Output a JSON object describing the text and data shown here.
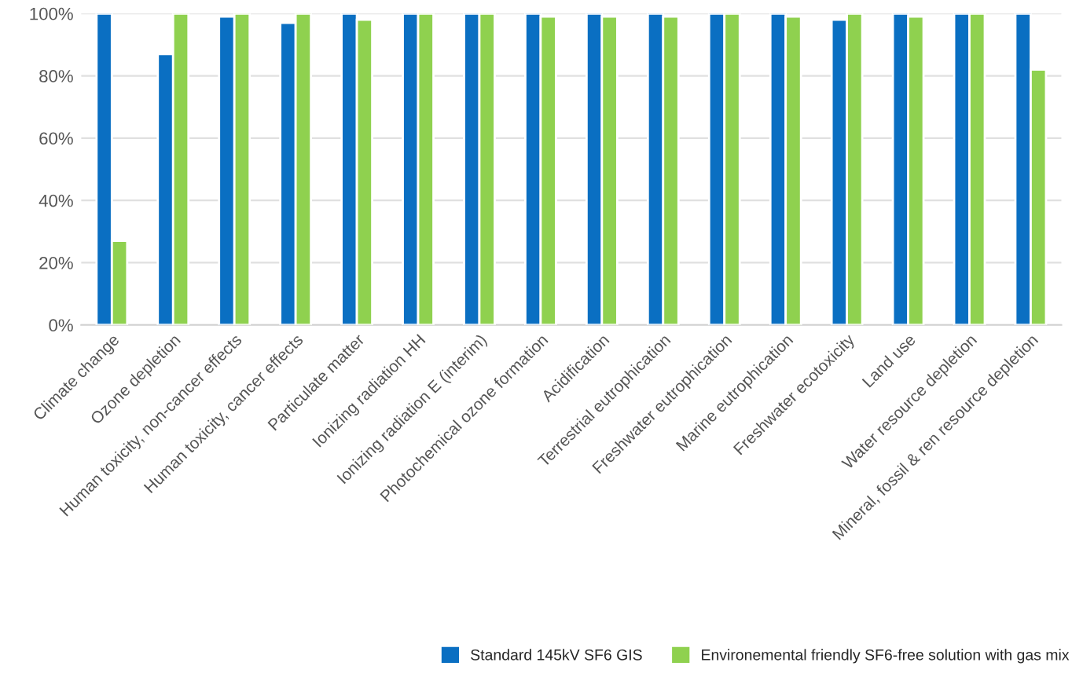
{
  "chart_data": {
    "type": "bar",
    "categories": [
      "Climate change",
      "Ozone depletion",
      "Human toxicity, non-cancer effects",
      "Human toxicity, cancer effects",
      "Particulate matter",
      "Ionizing radiation HH",
      "Ionizing radiation E (interim)",
      "Photochemical ozone formation",
      "Acidification",
      "Terrestrial eutrophication",
      "Freshwater eutrophication",
      "Marine eutrophication",
      "Freshwater ecotoxicity",
      "Land use",
      "Water resource depletion",
      "Mineral, fossil & ren resource depletion"
    ],
    "series": [
      {
        "name": "Standard 145kV SF6 GIS",
        "color": "#0a6fc2",
        "values": [
          100,
          87,
          99,
          97,
          100,
          100,
          100,
          100,
          100,
          100,
          100,
          100,
          98,
          100,
          100,
          100
        ]
      },
      {
        "name": "Environemental friendly SF6-free solution with gas mix",
        "color": "#8fd14f",
        "values": [
          27,
          100,
          100,
          100,
          98,
          100,
          100,
          99,
          99,
          99,
          100,
          99,
          100,
          99,
          100,
          82
        ]
      }
    ],
    "ylim": [
      0,
      100
    ],
    "yticks": [
      {
        "value": 0,
        "label": "0%"
      },
      {
        "value": 20,
        "label": "20%"
      },
      {
        "value": 40,
        "label": "40%"
      },
      {
        "value": 60,
        "label": "60%"
      },
      {
        "value": 80,
        "label": "80%"
      },
      {
        "value": 100,
        "label": "100%"
      }
    ],
    "grid": "y",
    "legend": "bottom"
  }
}
